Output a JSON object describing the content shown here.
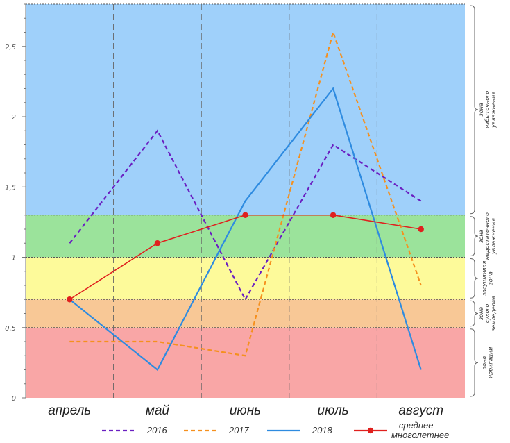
{
  "chart_data": {
    "type": "line",
    "categories": [
      "апрель",
      "май",
      "июнь",
      "июль",
      "август"
    ],
    "ylim": [
      0,
      2.8
    ],
    "yticks": [
      "0",
      "0,5",
      "1",
      "1,5",
      "2",
      "2,5"
    ],
    "grid": true,
    "legend_position": "bottom",
    "zones": [
      {
        "label": "зона\nирригации",
        "from": 0,
        "to": 0.5,
        "color": "#f9a6a6"
      },
      {
        "label": "зона\nсухого\nземледелия",
        "from": 0.5,
        "to": 0.7,
        "color": "#f8c896"
      },
      {
        "label": "засушливая\nзона",
        "from": 0.7,
        "to": 1.0,
        "color": "#fdfa9a"
      },
      {
        "label": "зона\nнедостаточного\nувлажнения",
        "from": 1.0,
        "to": 1.3,
        "color": "#9be39b"
      },
      {
        "label": "зона\nизбыточного\nувлажнения",
        "from": 1.3,
        "to": 2.8,
        "color": "#9fd0fa"
      }
    ],
    "series": [
      {
        "name": "– 2016",
        "values": [
          1.1,
          1.9,
          0.7,
          1.8,
          1.4
        ],
        "color": "#6a1fc1",
        "dash": "dashed",
        "markers": false
      },
      {
        "name": "– 2017",
        "values": [
          0.4,
          0.4,
          0.3,
          2.6,
          0.8
        ],
        "color": "#f5901e",
        "dash": "dashed",
        "markers": false
      },
      {
        "name": "– 2018",
        "values": [
          0.7,
          0.2,
          1.4,
          2.2,
          0.2
        ],
        "color": "#2e8be0",
        "dash": "solid",
        "markers": false
      },
      {
        "name": "– среднее\nмноголетнее",
        "values": [
          0.7,
          1.1,
          1.3,
          1.3,
          1.2
        ],
        "color": "#e0201e",
        "dash": "solid",
        "markers": true
      }
    ]
  }
}
